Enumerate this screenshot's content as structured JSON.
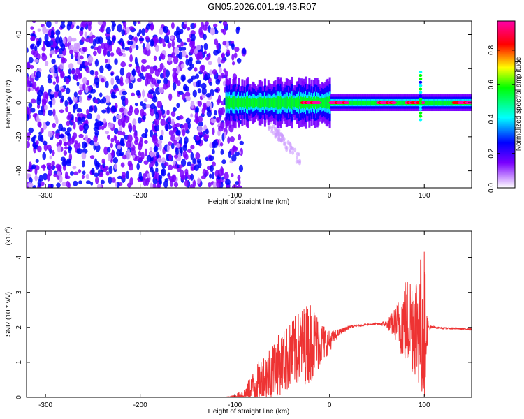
{
  "title": "GN05.2026.001.19.43.R07",
  "colors": {
    "snr_line": "#ee3333",
    "frame": "#000000"
  },
  "chart_data": [
    {
      "type": "heatmap",
      "title": "GN05.2026.001.19.43.R07",
      "xlabel": "Height of straight line (km)",
      "ylabel": "Frequency (Hz)",
      "xlim": [
        -320,
        150
      ],
      "ylim": [
        -50,
        48
      ],
      "xticks": [
        -300,
        -200,
        -100,
        0,
        100
      ],
      "yticks": [
        -40,
        -20,
        0,
        20,
        40
      ],
      "colorbar": {
        "label": "Normalized spectral amplitude",
        "range": [
          0,
          0.97
        ],
        "ticks": [
          "0.0",
          "0.2",
          "0.4",
          "0.6",
          "0.8"
        ],
        "tick_values": [
          0.0,
          0.2,
          0.4,
          0.6,
          0.8
        ]
      },
      "ridge": {
        "start_km": -110,
        "end_km": 150,
        "freq_hz": 0,
        "strong_start_km": -15,
        "strong_peak_values": [
          -20,
          10,
          60,
          90,
          140
        ]
      },
      "noise_region_km": [
        -320,
        -100
      ]
    },
    {
      "type": "line",
      "xlabel": "Height of straight line (km)",
      "ylabel": "SNR (10 * v/v)",
      "y_multiplier": "(x10",
      "y_multiplier_exp": "4",
      "y_multiplier_close": ")",
      "xlim": [
        -320,
        150
      ],
      "ylim": [
        0,
        4.75
      ],
      "xticks": [
        -300,
        -200,
        -100,
        0,
        100
      ],
      "yticks": [
        0,
        1,
        2,
        3,
        4
      ],
      "series": [
        {
          "name": "SNR",
          "color": "#ee3333",
          "x": [
            -320,
            -110,
            -100,
            -90,
            -80,
            -70,
            -60,
            -50,
            -40,
            -30,
            -20,
            -10,
            0,
            10,
            20,
            30,
            40,
            50,
            60,
            70,
            80,
            90,
            95,
            98,
            100,
            102,
            105,
            110,
            120,
            150
          ],
          "y": [
            0.0,
            0.0,
            0.02,
            0.08,
            0.3,
            0.55,
            0.8,
            1.0,
            1.2,
            1.45,
            1.6,
            1.55,
            1.6,
            1.85,
            2.0,
            2.05,
            2.08,
            2.1,
            2.1,
            2.1,
            2.15,
            2.2,
            2.0,
            2.2,
            2.05,
            1.9,
            1.98,
            2.0,
            1.98,
            1.95
          ],
          "noise_amplitude": [
            0,
            0,
            0.05,
            0.2,
            0.5,
            0.7,
            0.85,
            0.9,
            1.0,
            1.1,
            1.2,
            0.7,
            0.3,
            0.1,
            0.05,
            0.02,
            0.02,
            0.02,
            0.1,
            0.5,
            1.3,
            1.6,
            1.8,
            2.6,
            2.4,
            0.8,
            0.1,
            0.03,
            0.02,
            0.02
          ]
        }
      ]
    }
  ]
}
